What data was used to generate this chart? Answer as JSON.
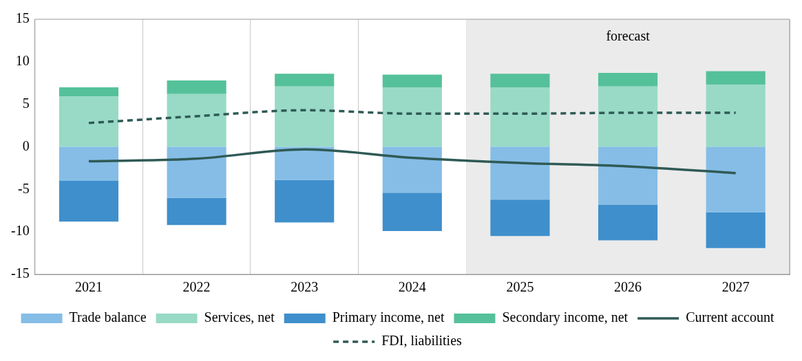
{
  "chart_data": {
    "type": "bar",
    "stacked": true,
    "categories": [
      "2021",
      "2022",
      "2023",
      "2024",
      "2025",
      "2026",
      "2027"
    ],
    "series": [
      {
        "name": "Trade balance",
        "color": "#85bde6",
        "values": [
          -4.0,
          -6.0,
          -3.9,
          -5.4,
          -6.2,
          -6.8,
          -7.7
        ]
      },
      {
        "name": "Services, net",
        "color": "#98dac6",
        "values": [
          5.9,
          6.2,
          7.1,
          7.0,
          7.0,
          7.1,
          7.3
        ]
      },
      {
        "name": "Primary income, net",
        "color": "#3f8fcc",
        "values": [
          -4.8,
          -3.2,
          -5.0,
          -4.5,
          -4.3,
          -4.2,
          -4.2
        ]
      },
      {
        "name": "Secondary income, net",
        "color": "#55c19a",
        "values": [
          1.1,
          1.6,
          1.5,
          1.5,
          1.6,
          1.6,
          1.6
        ]
      },
      {
        "name": "Current account",
        "type": "line",
        "color": "#2f5a55",
        "line_style": "solid",
        "values": [
          -1.7,
          -1.4,
          -0.3,
          -1.3,
          -1.9,
          -2.3,
          -3.1
        ]
      },
      {
        "name": "FDI, liabilities",
        "type": "line",
        "color": "#2f5a55",
        "line_style": "dashed",
        "values": [
          2.8,
          3.6,
          4.3,
          3.9,
          3.9,
          4.0,
          4.0
        ]
      }
    ],
    "ylim": [
      -15,
      15
    ],
    "yticks": [
      -15,
      -10,
      -5,
      0,
      5,
      10,
      15
    ],
    "grid": "x",
    "legend": "bottom",
    "marker": "none",
    "bands": [
      {
        "axis": "x",
        "from": "2025",
        "to": "2027",
        "label": "forecast",
        "color": "#ebebeb"
      }
    ]
  }
}
